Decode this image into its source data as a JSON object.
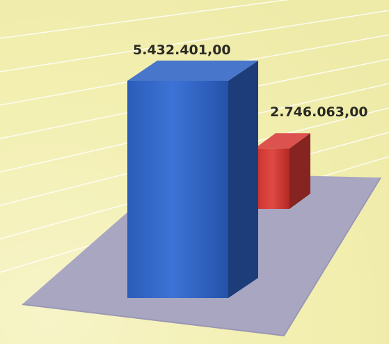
{
  "chart_data": {
    "type": "bar",
    "style": "3d",
    "categories": [
      "",
      ""
    ],
    "series": [
      {
        "values": [
          5432401.0,
          2746063.0
        ]
      }
    ],
    "data_labels": [
      "5.432.401,00",
      "2.746.063,00"
    ],
    "title": "",
    "xlabel": "",
    "ylabel": "",
    "grid": true,
    "legend": "none",
    "colors": {
      "background": "#f3f0b4",
      "floor": "#a9a6c2",
      "gridline": "#ffffff",
      "bars": [
        "#2f63c4",
        "#d63a36"
      ]
    }
  }
}
